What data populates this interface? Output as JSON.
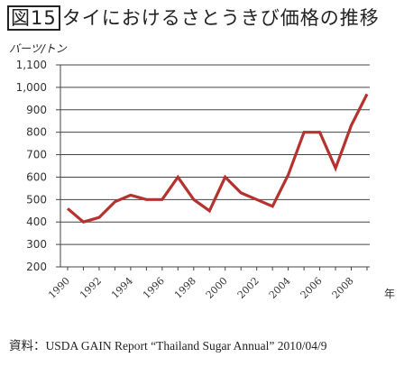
{
  "title_num": "図15",
  "title_text": "タイにおけるさとうきび価格の推移",
  "source": "資料：USDA GAIN Report “Thailand Sugar Annual” 2010/04/9",
  "chart_data": {
    "type": "line",
    "title": "図15 タイにおけるさとうきび価格の推移",
    "ylabel": "バーツ/トン",
    "xlabel": "年",
    "ylim": [
      200,
      1100
    ],
    "yticks": [
      200,
      300,
      400,
      500,
      600,
      700,
      800,
      900,
      1000,
      1100
    ],
    "ytick_labels": [
      "200",
      "300",
      "400",
      "500",
      "600",
      "700",
      "800",
      "900",
      "1,000",
      "1,100"
    ],
    "xtick_labels": [
      "1990",
      "1992",
      "1994",
      "1996",
      "1998",
      "2000",
      "2002",
      "2004",
      "2006",
      "2008"
    ],
    "grid": true,
    "series_color": "#b5322e",
    "x": [
      1990,
      1991,
      1992,
      1993,
      1994,
      1995,
      1996,
      1997,
      1998,
      1999,
      2000,
      2001,
      2002,
      2003,
      2004,
      2005,
      2006,
      2007,
      2008,
      2009
    ],
    "series": [
      {
        "values": [
          460,
          400,
          420,
          490,
          520,
          500,
          500,
          600,
          500,
          450,
          600,
          530,
          500,
          470,
          610,
          800,
          800,
          640,
          830,
          970
        ]
      }
    ]
  }
}
